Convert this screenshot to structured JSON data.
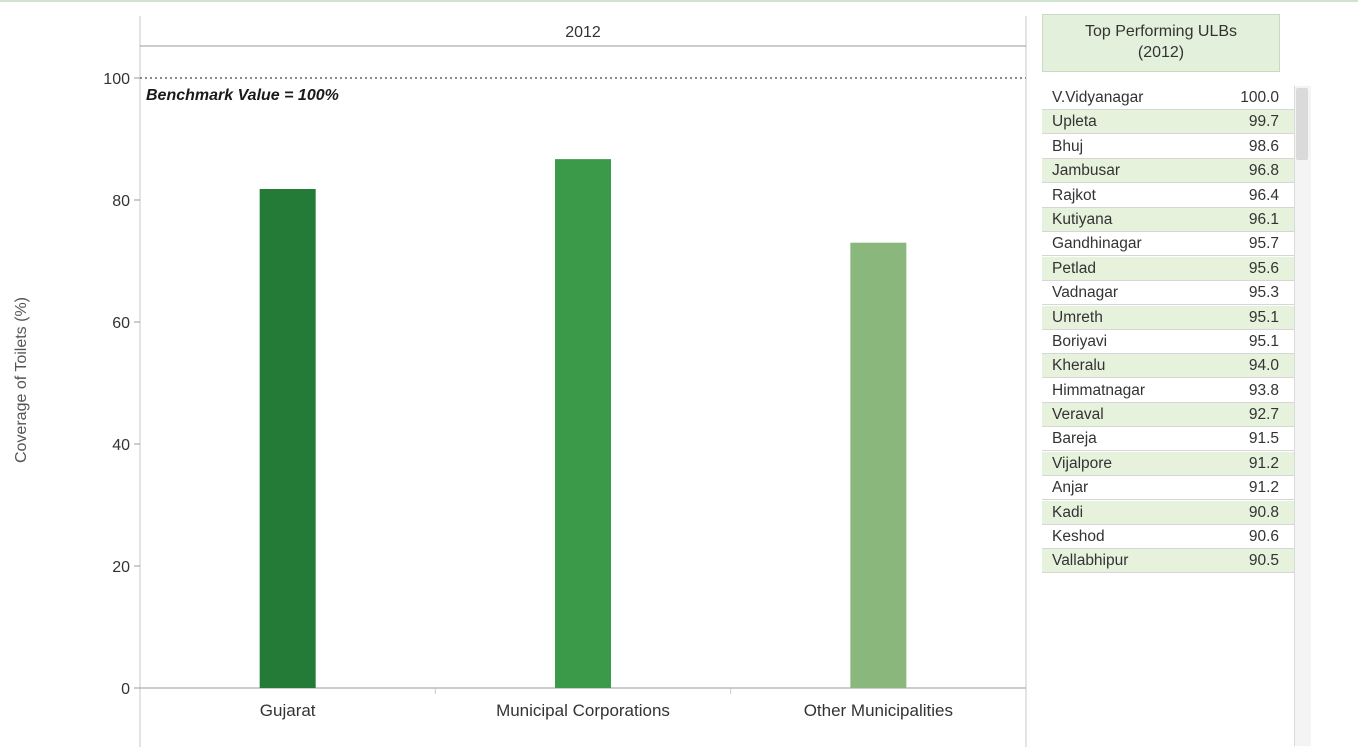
{
  "chart_data": {
    "type": "bar",
    "panel_header": "2012",
    "ylabel": "Coverage of Toilets (%)",
    "ylim": [
      0,
      100
    ],
    "yticks": [
      0,
      20,
      40,
      60,
      80,
      100
    ],
    "grid": false,
    "categories": [
      "Gujarat",
      "Municipal Corporations",
      "Other Municipalities"
    ],
    "values": [
      81.8,
      86.7,
      73.0
    ],
    "bar_colors": [
      "#237b37",
      "#3a9a4a",
      "#8ab77c"
    ],
    "reference_line": {
      "value": 100,
      "label": "Benchmark Value = 100%",
      "style": "dotted"
    }
  },
  "top_table": {
    "title_line1": "Top Performing ULBs",
    "title_line2": "(2012)",
    "rows": [
      {
        "name": "V.Vidyanagar",
        "value": "100.0"
      },
      {
        "name": "Upleta",
        "value": "99.7"
      },
      {
        "name": "Bhuj",
        "value": "98.6"
      },
      {
        "name": "Jambusar",
        "value": "96.8"
      },
      {
        "name": "Rajkot",
        "value": "96.4"
      },
      {
        "name": "Kutiyana",
        "value": "96.1"
      },
      {
        "name": "Gandhinagar",
        "value": "95.7"
      },
      {
        "name": "Petlad",
        "value": "95.6"
      },
      {
        "name": "Vadnagar",
        "value": "95.3"
      },
      {
        "name": "Umreth",
        "value": "95.1"
      },
      {
        "name": "Boriyavi",
        "value": "95.1"
      },
      {
        "name": "Kheralu",
        "value": "94.0"
      },
      {
        "name": "Himmatnagar",
        "value": "93.8"
      },
      {
        "name": "Veraval",
        "value": "92.7"
      },
      {
        "name": "Bareja",
        "value": "91.5"
      },
      {
        "name": "Vijalpore",
        "value": "91.2"
      },
      {
        "name": "Anjar",
        "value": "91.2"
      },
      {
        "name": "Kadi",
        "value": "90.8"
      },
      {
        "name": "Keshod",
        "value": "90.6"
      },
      {
        "name": "Vallabhipur",
        "value": "90.5"
      }
    ],
    "alt_row_color": "#e6f2dc"
  }
}
